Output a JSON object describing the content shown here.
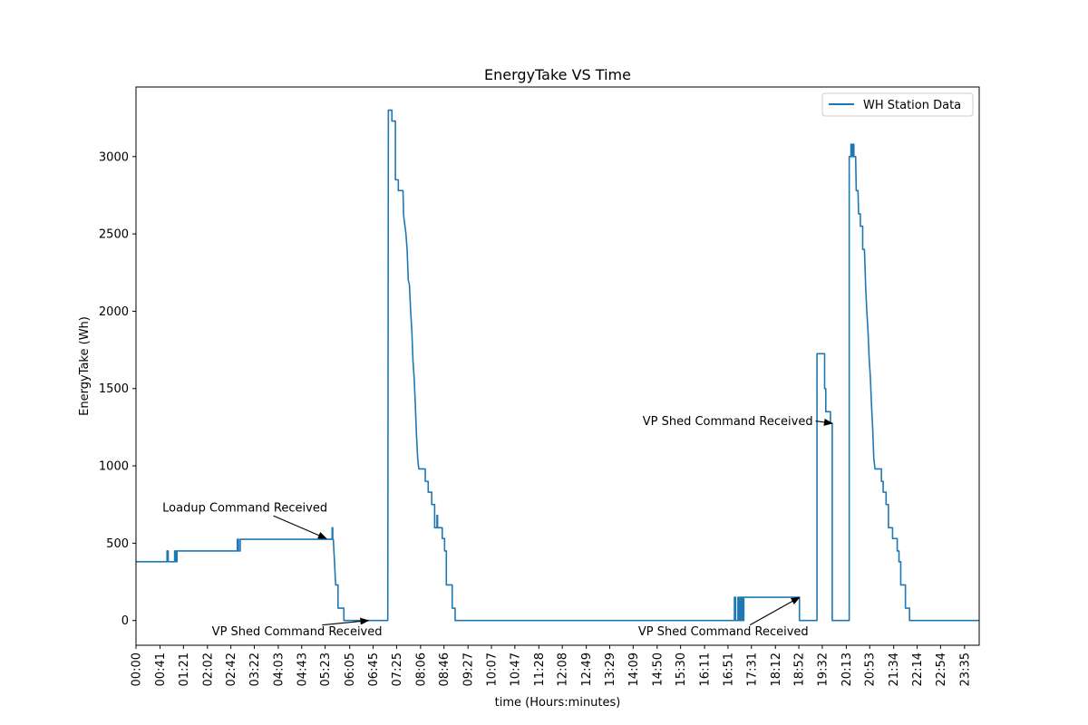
{
  "chart_data": {
    "type": "line",
    "title": "EnergyTake VS Time",
    "xlabel": "time (Hours:minutes)",
    "ylabel": "EnergyTake (Wh)",
    "xlim": [
      0,
      1440
    ],
    "ylim": [
      -160,
      3450
    ],
    "yticks": [
      0,
      500,
      1000,
      1500,
      2000,
      2500,
      3000
    ],
    "xticks": [
      {
        "label": "00:00",
        "min": 0
      },
      {
        "label": "00:41",
        "min": 41
      },
      {
        "label": "01:21",
        "min": 81
      },
      {
        "label": "02:02",
        "min": 122
      },
      {
        "label": "02:42",
        "min": 162
      },
      {
        "label": "03:22",
        "min": 202
      },
      {
        "label": "04:03",
        "min": 243
      },
      {
        "label": "04:43",
        "min": 283
      },
      {
        "label": "05:23",
        "min": 323
      },
      {
        "label": "06:05",
        "min": 365
      },
      {
        "label": "06:45",
        "min": 405
      },
      {
        "label": "07:25",
        "min": 445
      },
      {
        "label": "08:06",
        "min": 486
      },
      {
        "label": "08:46",
        "min": 526
      },
      {
        "label": "09:27",
        "min": 567
      },
      {
        "label": "10:07",
        "min": 607
      },
      {
        "label": "10:47",
        "min": 647
      },
      {
        "label": "11:28",
        "min": 688
      },
      {
        "label": "12:08",
        "min": 728
      },
      {
        "label": "12:49",
        "min": 769
      },
      {
        "label": "13:29",
        "min": 809
      },
      {
        "label": "14:09",
        "min": 849
      },
      {
        "label": "14:50",
        "min": 890
      },
      {
        "label": "15:30",
        "min": 930
      },
      {
        "label": "16:11",
        "min": 971
      },
      {
        "label": "16:51",
        "min": 1011
      },
      {
        "label": "17:31",
        "min": 1051
      },
      {
        "label": "18:12",
        "min": 1092
      },
      {
        "label": "18:52",
        "min": 1132
      },
      {
        "label": "19:32",
        "min": 1172
      },
      {
        "label": "20:13",
        "min": 1213
      },
      {
        "label": "20:53",
        "min": 1253
      },
      {
        "label": "21:34",
        "min": 1294
      },
      {
        "label": "22:14",
        "min": 1334
      },
      {
        "label": "22:54",
        "min": 1374
      },
      {
        "label": "23:35",
        "min": 1415
      }
    ],
    "grid": false,
    "legend_position": "top-right",
    "series": [
      {
        "name": "WH Station Data",
        "color": "#1f77b4",
        "points": [
          [
            0,
            380
          ],
          [
            53,
            380
          ],
          [
            53,
            450
          ],
          [
            55,
            450
          ],
          [
            55,
            380
          ],
          [
            66,
            380
          ],
          [
            66,
            450
          ],
          [
            68,
            450
          ],
          [
            68,
            380
          ],
          [
            70,
            380
          ],
          [
            70,
            450
          ],
          [
            173,
            450
          ],
          [
            173,
            525
          ],
          [
            175,
            525
          ],
          [
            175,
            450
          ],
          [
            178,
            450
          ],
          [
            178,
            525
          ],
          [
            335,
            525
          ],
          [
            335,
            600
          ],
          [
            336,
            600
          ],
          [
            336,
            525
          ],
          [
            337,
            525
          ],
          [
            338,
            450
          ],
          [
            339,
            380
          ],
          [
            340,
            300
          ],
          [
            341,
            230
          ],
          [
            345,
            230
          ],
          [
            345,
            80
          ],
          [
            355,
            80
          ],
          [
            355,
            0
          ],
          [
            430,
            0
          ],
          [
            431,
            3300
          ],
          [
            437,
            3300
          ],
          [
            437,
            3230
          ],
          [
            443,
            3230
          ],
          [
            443,
            2850
          ],
          [
            448,
            2850
          ],
          [
            448,
            2780
          ],
          [
            456,
            2780
          ],
          [
            457,
            2620
          ],
          [
            459,
            2560
          ],
          [
            461,
            2500
          ],
          [
            463,
            2400
          ],
          [
            465,
            2200
          ],
          [
            467,
            2170
          ],
          [
            469,
            2000
          ],
          [
            471,
            1880
          ],
          [
            473,
            1680
          ],
          [
            475,
            1570
          ],
          [
            477,
            1400
          ],
          [
            479,
            1200
          ],
          [
            481,
            1050
          ],
          [
            483,
            980
          ],
          [
            494,
            980
          ],
          [
            494,
            900
          ],
          [
            499,
            900
          ],
          [
            499,
            830
          ],
          [
            505,
            830
          ],
          [
            505,
            750
          ],
          [
            510,
            750
          ],
          [
            510,
            600
          ],
          [
            514,
            600
          ],
          [
            514,
            680
          ],
          [
            515,
            680
          ],
          [
            515,
            600
          ],
          [
            523,
            600
          ],
          [
            523,
            530
          ],
          [
            527,
            530
          ],
          [
            527,
            450
          ],
          [
            530,
            450
          ],
          [
            530,
            230
          ],
          [
            540,
            230
          ],
          [
            540,
            80
          ],
          [
            545,
            80
          ],
          [
            545,
            0
          ],
          [
            1022,
            0
          ],
          [
            1022,
            150
          ],
          [
            1024,
            150
          ],
          [
            1024,
            0
          ],
          [
            1028,
            0
          ],
          [
            1028,
            150
          ],
          [
            1030,
            150
          ],
          [
            1030,
            0
          ],
          [
            1032,
            0
          ],
          [
            1032,
            150
          ],
          [
            1034,
            150
          ],
          [
            1034,
            0
          ],
          [
            1035,
            0
          ],
          [
            1035,
            150
          ],
          [
            1037,
            150
          ],
          [
            1037,
            0
          ],
          [
            1038,
            0
          ],
          [
            1038,
            150
          ],
          [
            1133,
            150
          ],
          [
            1133,
            0
          ],
          [
            1163,
            0
          ],
          [
            1163,
            1725
          ],
          [
            1176,
            1725
          ],
          [
            1176,
            1500
          ],
          [
            1178,
            1500
          ],
          [
            1178,
            1350
          ],
          [
            1186,
            1350
          ],
          [
            1186,
            1275
          ],
          [
            1189,
            1275
          ],
          [
            1189,
            0
          ],
          [
            1218,
            0
          ],
          [
            1218,
            3000
          ],
          [
            1221,
            3000
          ],
          [
            1221,
            3080
          ],
          [
            1222,
            3080
          ],
          [
            1222,
            3000
          ],
          [
            1224,
            3000
          ],
          [
            1224,
            3080
          ],
          [
            1226,
            3080
          ],
          [
            1226,
            3000
          ],
          [
            1229,
            3000
          ],
          [
            1230,
            2780
          ],
          [
            1233,
            2780
          ],
          [
            1234,
            2630
          ],
          [
            1237,
            2630
          ],
          [
            1237,
            2550
          ],
          [
            1241,
            2550
          ],
          [
            1241,
            2400
          ],
          [
            1244,
            2400
          ],
          [
            1246,
            2170
          ],
          [
            1248,
            2000
          ],
          [
            1250,
            1880
          ],
          [
            1252,
            1700
          ],
          [
            1254,
            1580
          ],
          [
            1256,
            1400
          ],
          [
            1258,
            1250
          ],
          [
            1260,
            1050
          ],
          [
            1262,
            980
          ],
          [
            1273,
            980
          ],
          [
            1273,
            900
          ],
          [
            1276,
            900
          ],
          [
            1276,
            830
          ],
          [
            1281,
            830
          ],
          [
            1281,
            750
          ],
          [
            1285,
            750
          ],
          [
            1285,
            600
          ],
          [
            1292,
            600
          ],
          [
            1292,
            530
          ],
          [
            1300,
            530
          ],
          [
            1300,
            450
          ],
          [
            1303,
            450
          ],
          [
            1303,
            380
          ],
          [
            1306,
            380
          ],
          [
            1306,
            230
          ],
          [
            1314,
            230
          ],
          [
            1314,
            80
          ],
          [
            1321,
            80
          ],
          [
            1321,
            0
          ],
          [
            1440,
            0
          ]
        ]
      }
    ],
    "annotations": [
      {
        "text": "Loadup Command Received",
        "text_x": 186,
        "text_y": 730,
        "text_anchor": "middle",
        "arrow_x": 325,
        "arrow_y": 530
      },
      {
        "text": "VP Shed Command Received",
        "text_x": 275,
        "text_y": -70,
        "text_anchor": "middle",
        "arrow_x": 397,
        "arrow_y": 0
      },
      {
        "text": "VP Shed Command Received",
        "text_x": 1156,
        "text_y": 1290,
        "text_anchor": "end",
        "arrow_x": 1189,
        "arrow_y": 1275
      },
      {
        "text": "VP Shed Command Received",
        "text_x": 1003,
        "text_y": -70,
        "text_anchor": "middle",
        "arrow_x": 1133,
        "arrow_y": 150
      }
    ]
  }
}
